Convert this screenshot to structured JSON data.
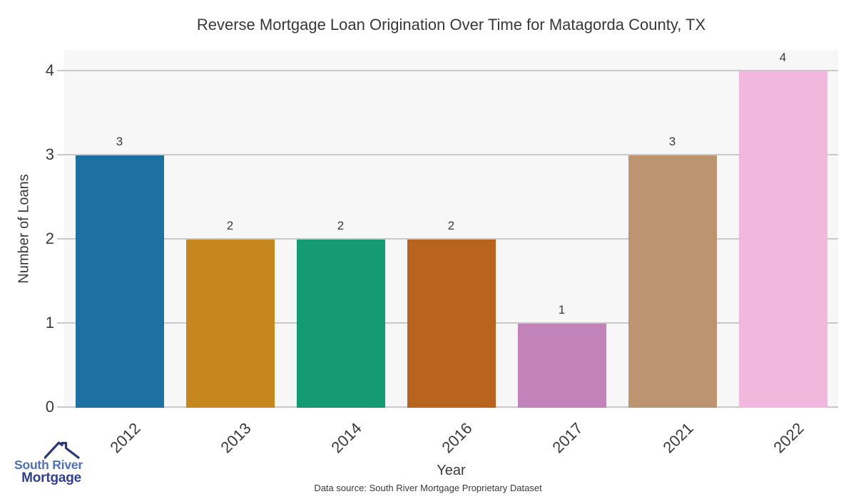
{
  "chart_data": {
    "type": "bar",
    "title": "Reverse Mortgage Loan Origination Over Time for Matagorda County, TX",
    "categories": [
      "2012",
      "2013",
      "2014",
      "2016",
      "2017",
      "2021",
      "2022"
    ],
    "values": [
      3,
      2,
      2,
      2,
      1,
      3,
      4
    ],
    "bar_colors": [
      "#1c71a2",
      "#c6881e",
      "#149b74",
      "#b8641e",
      "#c183b9",
      "#bd9470",
      "#f1b7dd"
    ],
    "xlabel": "Year",
    "ylabel": "Number of Loans",
    "yticks": [
      0,
      1,
      2,
      3,
      4
    ],
    "ylim": [
      0,
      4.25
    ],
    "grid": "horizontal-only",
    "legend": "none",
    "plot_background": "#f7f7f7",
    "page_background": "#ffffff",
    "grid_color": "#c9c9c9",
    "text_color": "#3a3a3a",
    "value_label_position": "above-bar",
    "xtick_rotation_deg": 45
  },
  "branding": {
    "logo_line1": "South River",
    "logo_line2": "Mortgage",
    "logo_icon": "house-roof-icon",
    "logo_line1_color": "#4d70bd",
    "logo_line2_color": "#303f94",
    "roof_color": "#2b3876"
  },
  "footer": {
    "source_note": "Data source: South River Mortgage Proprietary Dataset"
  }
}
